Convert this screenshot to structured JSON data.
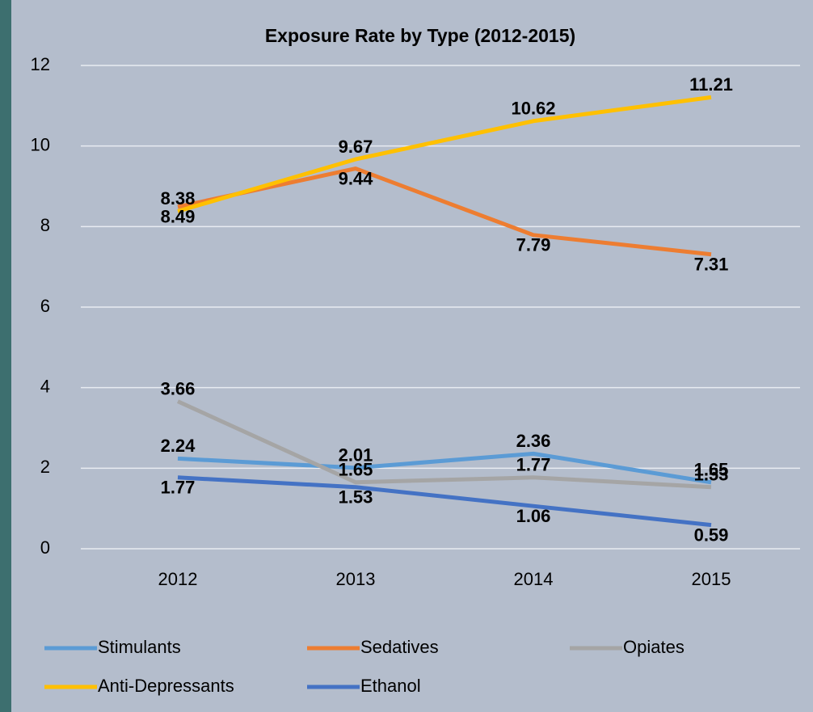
{
  "chart_data": {
    "type": "line",
    "title": "Exposure Rate by Type (2012-2015)",
    "categories": [
      "2012",
      "2013",
      "2014",
      "2015"
    ],
    "series": [
      {
        "name": "Stimulants",
        "color": "#5b9bd5",
        "values": [
          2.24,
          2.01,
          2.36,
          1.65
        ]
      },
      {
        "name": "Sedatives",
        "color": "#ed7d31",
        "values": [
          8.49,
          9.44,
          7.79,
          7.31
        ]
      },
      {
        "name": "Opiates",
        "color": "#a5a5a5",
        "values": [
          3.66,
          1.65,
          1.77,
          1.53
        ]
      },
      {
        "name": "Anti-Depressants",
        "color": "#ffc000",
        "values": [
          8.38,
          9.67,
          10.62,
          11.21
        ]
      },
      {
        "name": "Ethanol",
        "color": "#4472c4",
        "values": [
          1.77,
          1.53,
          1.06,
          0.59
        ]
      }
    ],
    "ylim": [
      0,
      12
    ],
    "yticks": [
      0,
      2,
      4,
      6,
      8,
      10,
      12
    ],
    "grid": true,
    "legend": "bottom"
  }
}
